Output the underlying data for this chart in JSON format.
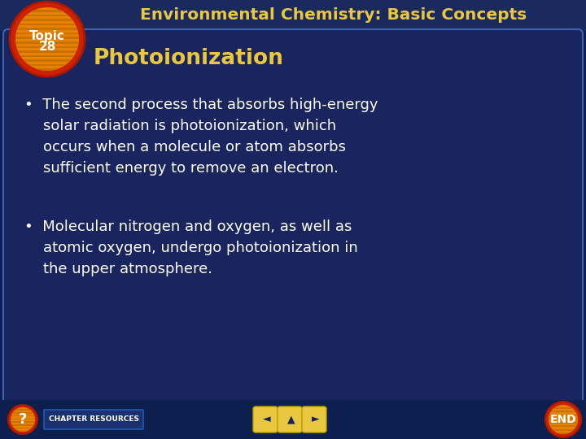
{
  "title": "Environmental Chemistry: Basic Concepts",
  "subtitle": "Photoionization",
  "topic_label_line1": "Topic",
  "topic_label_line2": "28",
  "bullet1_line1": "•  The second process that absorbs high-energy",
  "bullet1_line2": "    solar radiation is photoionization, which",
  "bullet1_line3": "    occurs when a molecule or atom absorbs",
  "bullet1_line4": "    sufficient energy to remove an electron.",
  "bullet2_line1": "•  Molecular nitrogen and oxygen, as well as",
  "bullet2_line2": "    atomic oxygen, undergo photoionization in",
  "bullet2_line3": "    the upper atmosphere.",
  "bg_dark": "#0d1f4e",
  "bg_slide": "#162050",
  "header_bg": "#1a2a5e",
  "inner_bg": "#1a2560",
  "title_color": "#e8c840",
  "subtitle_color": "#e8c840",
  "body_color": "#ffffff",
  "circle_red": "#cc2200",
  "circle_orange": "#e88000",
  "circle_stripe": "#c87000",
  "topic_text_color": "#ffffff",
  "footer_bg": "#0d1f4e",
  "nav_button_color": "#e8c840",
  "chapter_bg": "#1a3070",
  "chapter_text": "#ffffff",
  "end_text": "#ffffff"
}
